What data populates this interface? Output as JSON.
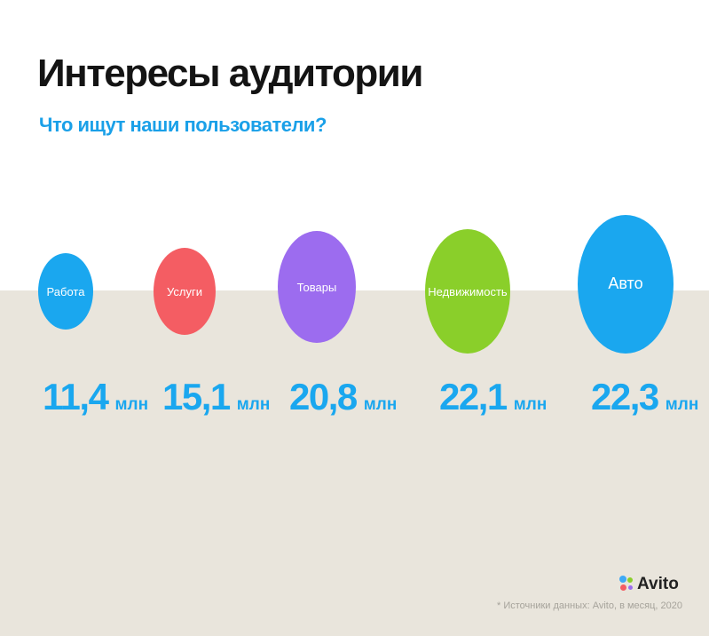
{
  "header": {
    "title": "Интересы аудитории",
    "subtitle": "Что ищут наши пользователи?"
  },
  "chart_data": {
    "type": "bubble",
    "title": "Интересы аудитории",
    "subtitle": "Что ищут наши пользователи?",
    "unit": "млн",
    "categories": [
      "Работа",
      "Услуги",
      "Товары",
      "Недвижимость",
      "Авто"
    ],
    "values": [
      11.4,
      15.1,
      20.8,
      22.1,
      22.3
    ],
    "value_labels": [
      "11,4",
      "15,1",
      "20,8",
      "22,1",
      "22,3"
    ],
    "colors": [
      "#1aa7ef",
      "#f45d63",
      "#9c6cef",
      "#8acf2a",
      "#1aa7ef"
    ],
    "value_color": "#1aa7ef"
  },
  "footer": {
    "logo_text": "Avito",
    "logo_colors": [
      "#3fa9f5",
      "#8acf2a",
      "#f45d63",
      "#9c6cef"
    ],
    "source": "* Источники данных: Avito, в месяц, 2020"
  }
}
